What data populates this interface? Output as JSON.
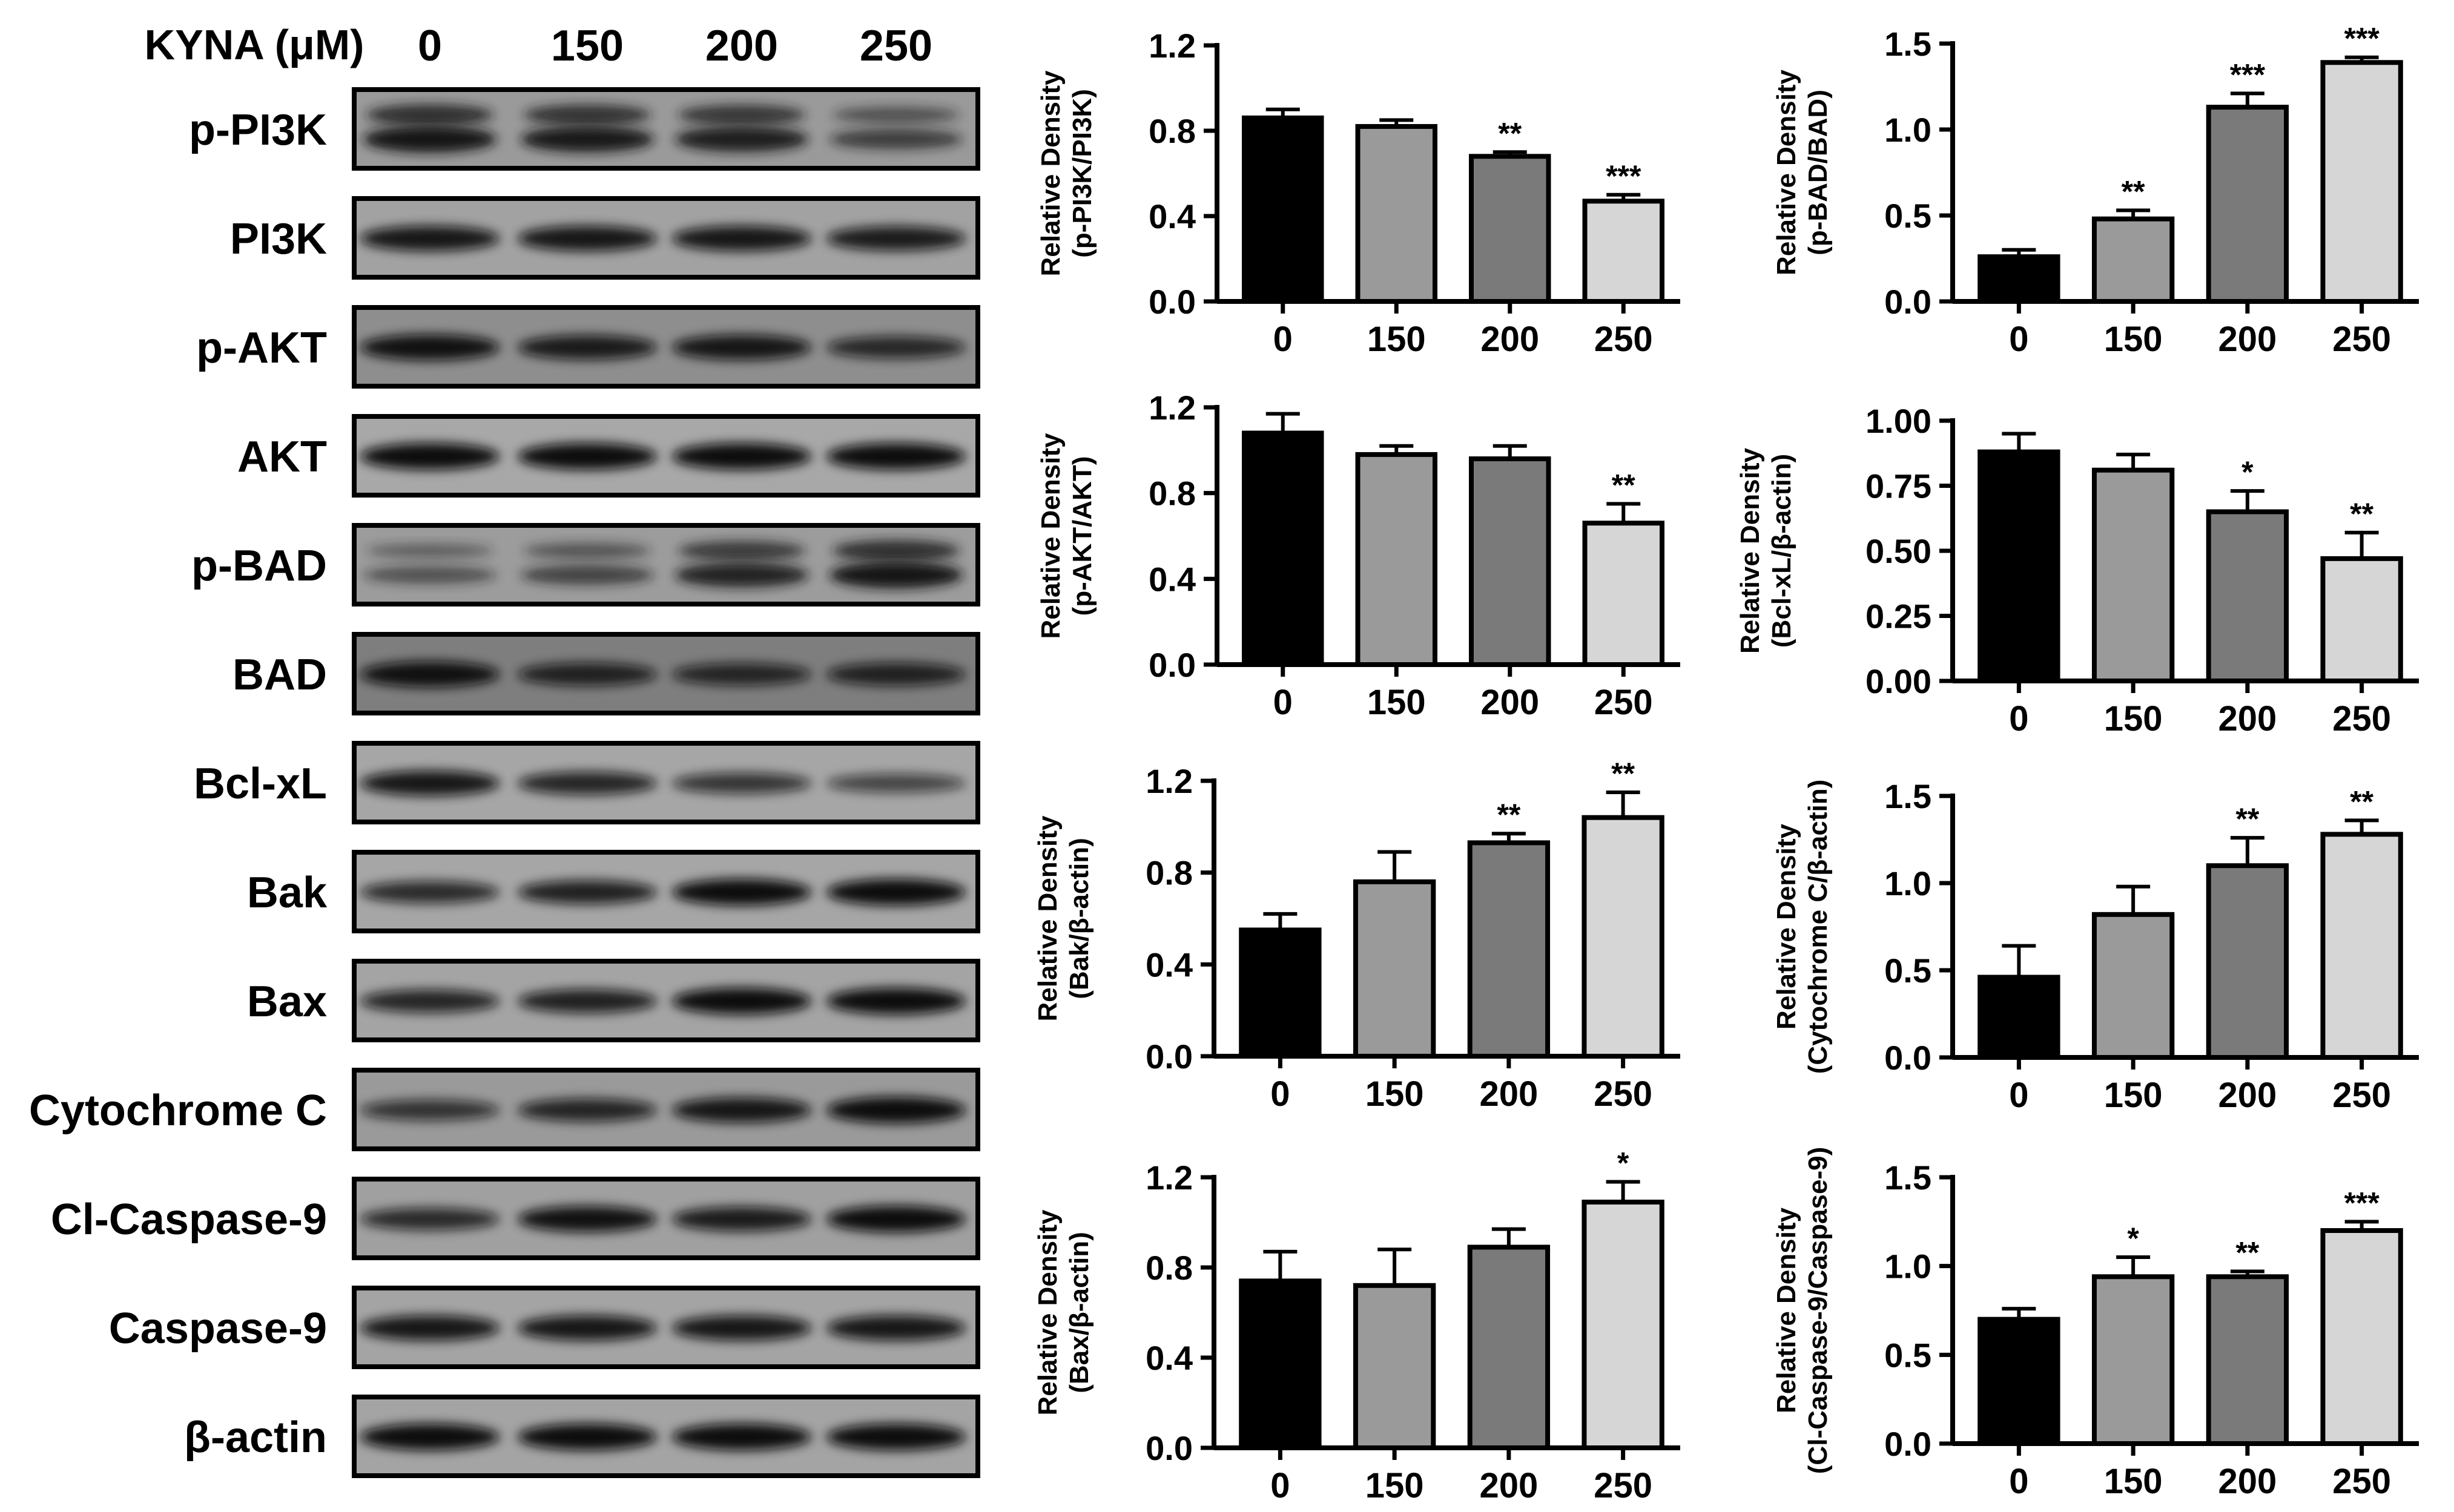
{
  "blot": {
    "treatment_label": "KYNA (μM)",
    "lanes": [
      "0",
      "150",
      "200",
      "250"
    ],
    "rows": [
      {
        "label": "p-PI3K",
        "bg": "#9a9a9a",
        "band": [
          1.0,
          0.95,
          0.9,
          0.55
        ],
        "double": true
      },
      {
        "label": "PI3K",
        "bg": "#a2a2a2",
        "band": [
          0.9,
          0.9,
          0.9,
          0.85
        ],
        "double": false
      },
      {
        "label": "p-AKT",
        "bg": "#8e8e8e",
        "band": [
          0.95,
          0.85,
          0.9,
          0.7
        ],
        "double": false
      },
      {
        "label": "AKT",
        "bg": "#a8a8a8",
        "band": [
          1.0,
          1.0,
          1.0,
          1.0
        ],
        "double": false
      },
      {
        "label": "p-BAD",
        "bg": "#9c9c9c",
        "band": [
          0.35,
          0.5,
          0.85,
          1.0
        ],
        "double": true
      },
      {
        "label": "BAD",
        "bg": "#7e7e7e",
        "band": [
          0.95,
          0.75,
          0.7,
          0.75
        ],
        "double": false
      },
      {
        "label": "Bcl-xL",
        "bg": "#a6a6a6",
        "band": [
          0.9,
          0.75,
          0.6,
          0.45
        ],
        "double": false
      },
      {
        "label": "Bak",
        "bg": "#a6a6a6",
        "band": [
          0.7,
          0.8,
          1.0,
          1.0
        ],
        "double": false
      },
      {
        "label": "Bax",
        "bg": "#a4a4a4",
        "band": [
          0.75,
          0.8,
          1.0,
          1.0
        ],
        "double": false
      },
      {
        "label": "Cytochrome C",
        "bg": "#9a9a9a",
        "band": [
          0.6,
          0.75,
          0.9,
          1.0
        ],
        "double": false
      },
      {
        "label": "Cl-Caspase-9",
        "bg": "#a0a0a0",
        "band": [
          0.7,
          0.95,
          0.85,
          1.0
        ],
        "double": false
      },
      {
        "label": "Caspase-9",
        "bg": "#a4a4a4",
        "band": [
          0.9,
          0.9,
          0.9,
          0.9
        ],
        "double": false
      },
      {
        "label": "β-actin",
        "bg": "#a4a4a4",
        "band": [
          1.0,
          1.0,
          1.0,
          1.0
        ],
        "double": false
      }
    ]
  },
  "colors": [
    "#000000",
    "#9a9a9a",
    "#7a7a7a",
    "#d6d6d6"
  ],
  "chart_data": [
    {
      "type": "bar",
      "categories": [
        "0",
        "150",
        "200",
        "250"
      ],
      "ylabel_line1": "Relative Density",
      "ylabel_line2": "(p-PI3K/PI3K)",
      "values": [
        0.86,
        0.82,
        0.68,
        0.47
      ],
      "errors": [
        0.04,
        0.03,
        0.02,
        0.03
      ],
      "significance": [
        "",
        "",
        "**",
        "***"
      ],
      "ylim": [
        0,
        1.2
      ],
      "yticks": [
        "0.0",
        "0.4",
        "0.8",
        "1.2"
      ]
    },
    {
      "type": "bar",
      "categories": [
        "0",
        "150",
        "200",
        "250"
      ],
      "ylabel_line1": "Relative Density",
      "ylabel_line2": "(p-BAD/BAD)",
      "values": [
        0.26,
        0.48,
        1.13,
        1.39
      ],
      "errors": [
        0.04,
        0.05,
        0.08,
        0.03
      ],
      "significance": [
        "",
        "**",
        "***",
        "***"
      ],
      "ylim": [
        0,
        1.5
      ],
      "yticks": [
        "0.0",
        "0.5",
        "1.0",
        "1.5"
      ]
    },
    {
      "type": "bar",
      "categories": [
        "0",
        "150",
        "200",
        "250"
      ],
      "ylabel_line1": "Relative Density",
      "ylabel_line2": "(p-AKT/AKT)",
      "values": [
        1.08,
        0.98,
        0.96,
        0.66
      ],
      "errors": [
        0.09,
        0.04,
        0.06,
        0.09
      ],
      "significance": [
        "",
        "",
        "",
        "**"
      ],
      "ylim": [
        0,
        1.2
      ],
      "yticks": [
        "0.0",
        "0.4",
        "0.8",
        "1.2"
      ]
    },
    {
      "type": "bar",
      "categories": [
        "0",
        "150",
        "200",
        "250"
      ],
      "ylabel_line1": "Relative Density",
      "ylabel_line2": "(Bcl-xL/β-actin)",
      "values": [
        0.88,
        0.81,
        0.65,
        0.47
      ],
      "errors": [
        0.07,
        0.06,
        0.08,
        0.1
      ],
      "significance": [
        "",
        "",
        "*",
        "**"
      ],
      "ylim": [
        0,
        1.0
      ],
      "yticks": [
        "0.00",
        "0.25",
        "0.50",
        "0.75",
        "1.00"
      ]
    },
    {
      "type": "bar",
      "categories": [
        "0",
        "150",
        "200",
        "250"
      ],
      "ylabel_line1": "Relative Density",
      "ylabel_line2": "(Bak/β-actin)",
      "values": [
        0.55,
        0.76,
        0.93,
        1.04
      ],
      "errors": [
        0.07,
        0.13,
        0.04,
        0.11
      ],
      "significance": [
        "",
        "",
        "**",
        "**"
      ],
      "ylim": [
        0,
        1.2
      ],
      "yticks": [
        "0.0",
        "0.4",
        "0.8",
        "1.2"
      ]
    },
    {
      "type": "bar",
      "categories": [
        "0",
        "150",
        "200",
        "250"
      ],
      "ylabel_line1": "Relative Density",
      "ylabel_line2": "(Cytochrome C/β-actin)",
      "values": [
        0.46,
        0.82,
        1.1,
        1.28
      ],
      "errors": [
        0.18,
        0.16,
        0.16,
        0.08
      ],
      "significance": [
        "",
        "",
        "**",
        "**"
      ],
      "ylim": [
        0,
        1.5
      ],
      "yticks": [
        "0.0",
        "0.5",
        "1.0",
        "1.5"
      ]
    },
    {
      "type": "bar",
      "categories": [
        "0",
        "150",
        "200",
        "250"
      ],
      "ylabel_line1": "Relative Density",
      "ylabel_line2": "(Bax/β-actin)",
      "values": [
        0.74,
        0.72,
        0.89,
        1.09
      ],
      "errors": [
        0.13,
        0.16,
        0.08,
        0.09
      ],
      "significance": [
        "",
        "",
        "",
        "*"
      ],
      "ylim": [
        0,
        1.2
      ],
      "yticks": [
        "0.0",
        "0.4",
        "0.8",
        "1.2"
      ]
    },
    {
      "type": "bar",
      "categories": [
        "0",
        "150",
        "200",
        "250"
      ],
      "ylabel_line1": "Relative Density",
      "ylabel_line2": "(Cl-Caspase-9/Caspase-9)",
      "values": [
        0.7,
        0.94,
        0.94,
        1.2
      ],
      "errors": [
        0.06,
        0.11,
        0.03,
        0.05
      ],
      "significance": [
        "",
        "*",
        "**",
        "***"
      ],
      "ylim": [
        0,
        1.5
      ],
      "yticks": [
        "0.0",
        "0.5",
        "1.0",
        "1.5"
      ]
    }
  ]
}
